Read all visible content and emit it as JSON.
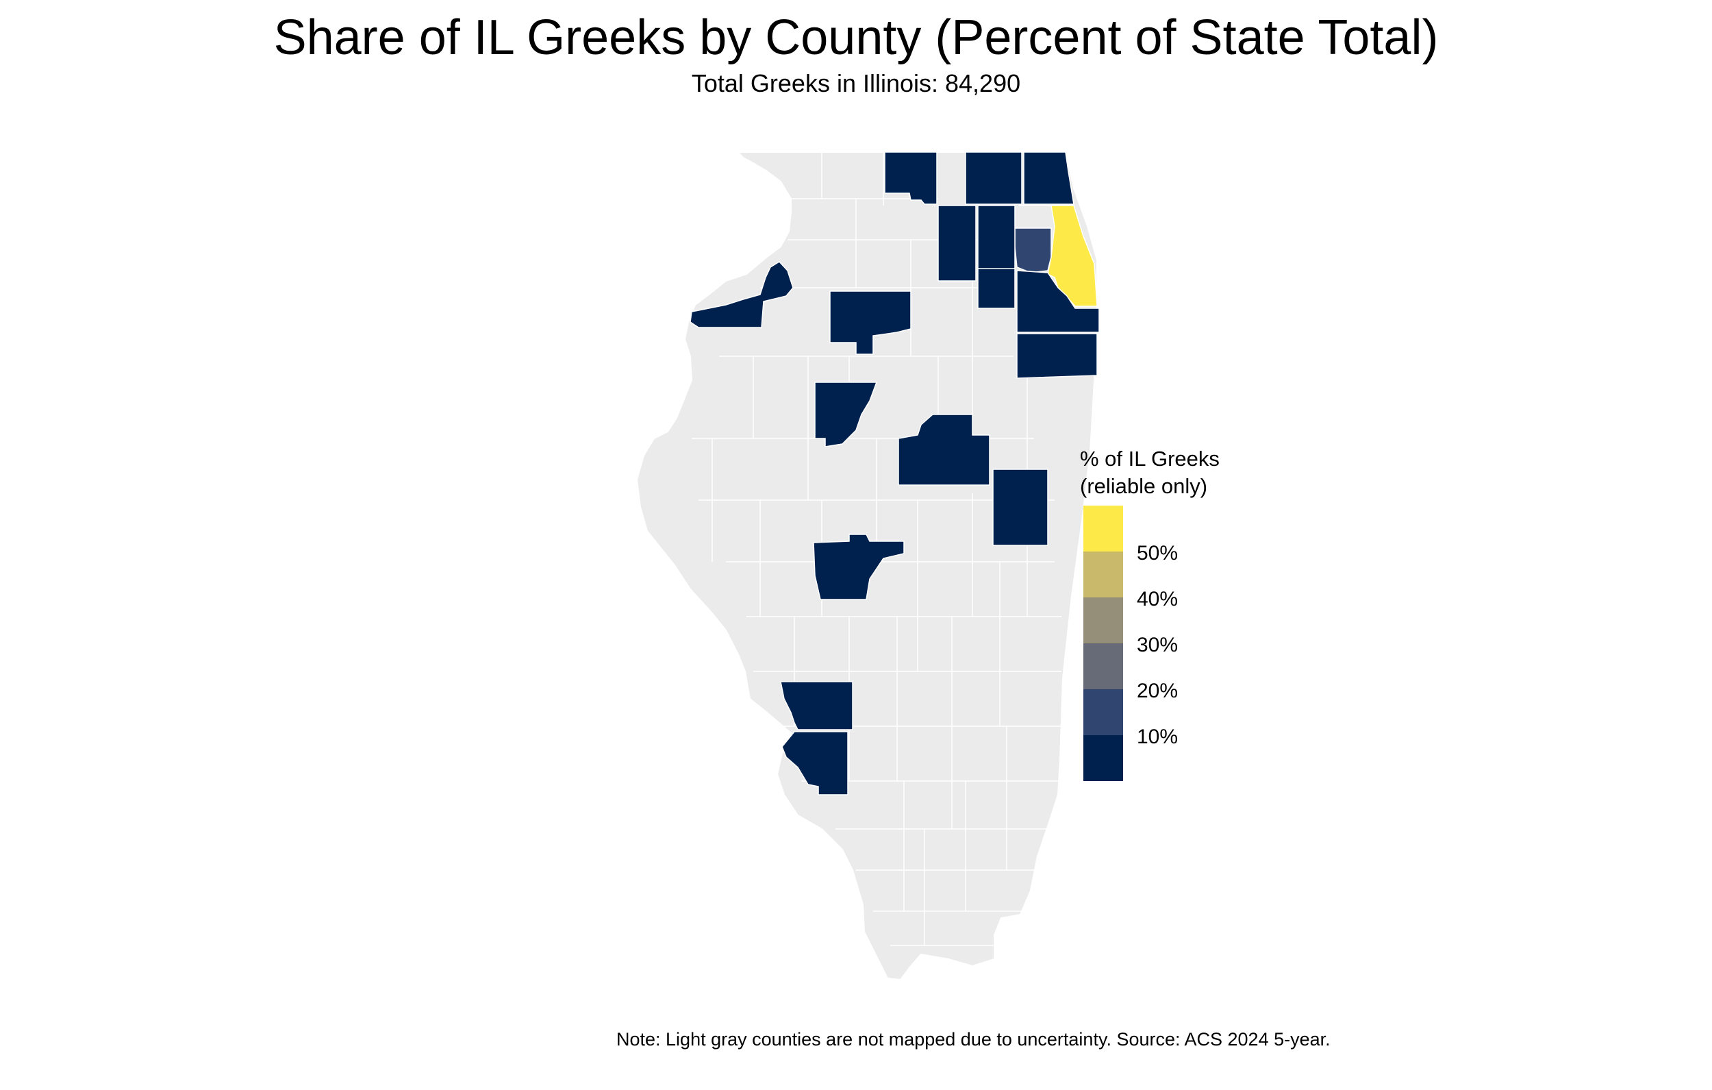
{
  "title": "Share of IL Greeks by County (Percent of State Total)",
  "subtitle": "Total Greeks in Illinois: 84,290",
  "note": "Note: Light gray counties are not mapped due to uncertainty. Source: ACS 2024 5-year.",
  "legend": {
    "title_line1": "% of IL Greeks",
    "title_line2": "(reliable only)",
    "labels": [
      "50%",
      "40%",
      "30%",
      "20%",
      "10%"
    ],
    "bins": [
      {
        "color": "#fde947"
      },
      {
        "color": "#c8b96b"
      },
      {
        "color": "#958e78"
      },
      {
        "color": "#676b77"
      },
      {
        "color": "#304570"
      },
      {
        "color": "#00204e"
      }
    ]
  },
  "colors": {
    "state_fill": "#ebebeb",
    "county_border": "#ffffff",
    "low_share": "#00204e",
    "mid_share": "#304570",
    "high_share": "#fde947"
  }
}
